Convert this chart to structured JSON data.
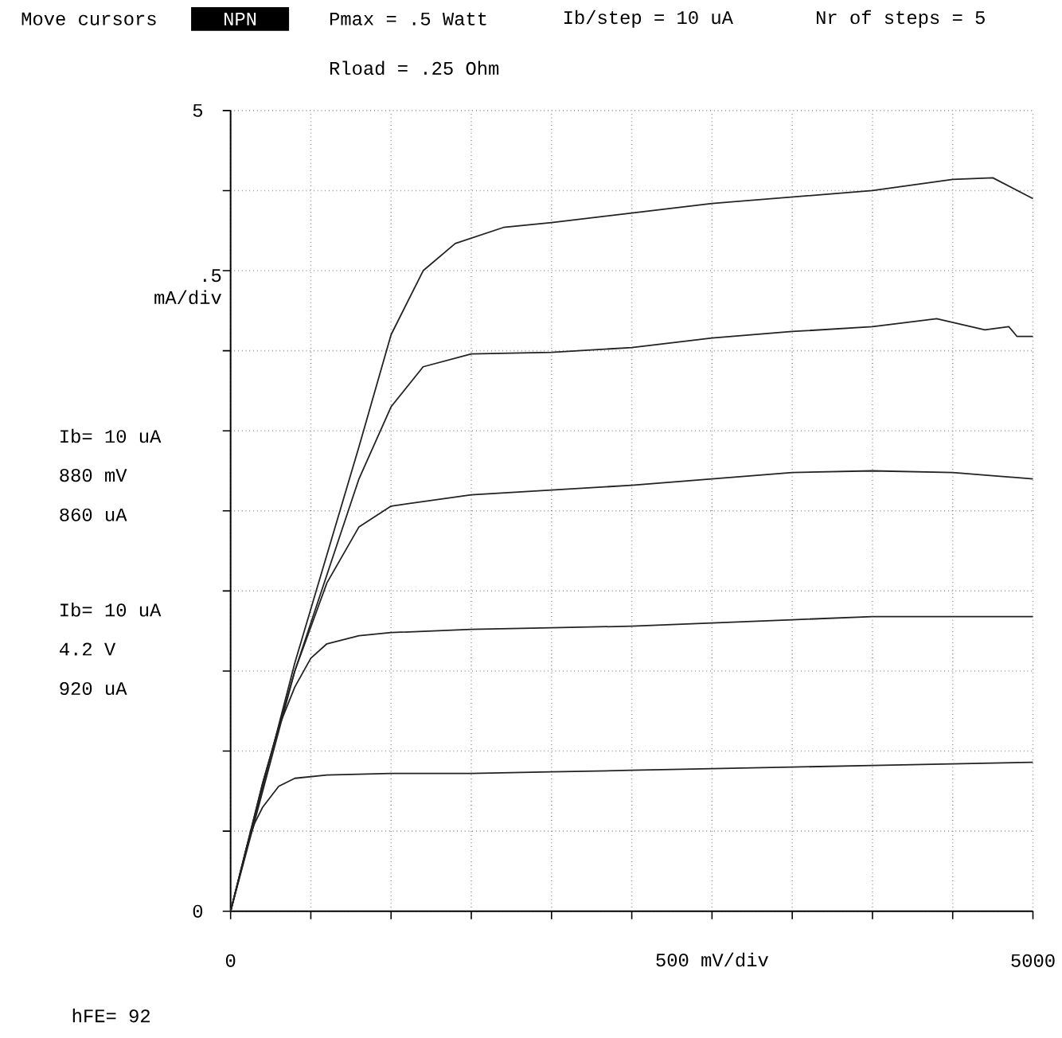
{
  "chart_data": {
    "type": "line",
    "xlabel": "500 mV/div",
    "ylabel": ".5 mA/div",
    "xlim": [
      0,
      5000
    ],
    "ylim": [
      0,
      5
    ],
    "xticks": [
      0,
      {
        "value": 500,
        "label": null
      },
      {
        "value": 1000,
        "label": null
      },
      {
        "value": 1500,
        "label": null
      },
      {
        "value": 2000,
        "label": null
      },
      {
        "value": 2500,
        "label": null
      },
      {
        "value": 3000,
        "label": null
      },
      {
        "value": 3500,
        "label": null
      },
      {
        "value": 4000,
        "label": null
      },
      {
        "value": 4500,
        "label": null
      },
      5000
    ],
    "yticks": [
      0,
      {
        "value": 0.5,
        "label": null
      },
      {
        "value": 1,
        "label": null
      },
      {
        "value": 1.5,
        "label": null
      },
      {
        "value": 2,
        "label": null
      },
      {
        "value": 2.5,
        "label": null
      },
      {
        "value": 3,
        "label": null
      },
      {
        "value": 3.5,
        "label": null
      },
      {
        "value": 4,
        "label": null
      },
      {
        "value": 4.5,
        "label": null
      },
      5
    ],
    "grid": true,
    "series": [
      {
        "color": "#222222",
        "x": [
          0,
          50,
          100,
          150,
          200,
          300,
          400,
          600,
          1000,
          1500,
          2000,
          2500,
          3000,
          3500,
          4000,
          4500,
          5000
        ],
        "values": [
          0,
          0.2,
          0.4,
          0.55,
          0.65,
          0.78,
          0.83,
          0.85,
          0.86,
          0.86,
          0.87,
          0.88,
          0.89,
          0.9,
          0.91,
          0.92,
          0.93
        ]
      },
      {
        "color": "#222222",
        "x": [
          0,
          100,
          200,
          300,
          400,
          500,
          600,
          800,
          1000,
          1500,
          2000,
          2500,
          3000,
          3500,
          4000,
          4500,
          5000
        ],
        "values": [
          0,
          0.4,
          0.8,
          1.15,
          1.4,
          1.58,
          1.67,
          1.72,
          1.74,
          1.76,
          1.77,
          1.78,
          1.8,
          1.82,
          1.84,
          1.84,
          1.84
        ]
      },
      {
        "color": "#222222",
        "x": [
          0,
          200,
          400,
          600,
          800,
          1000,
          1500,
          2000,
          2500,
          3000,
          3500,
          4000,
          4500,
          5000
        ],
        "values": [
          0,
          0.8,
          1.5,
          2.05,
          2.4,
          2.53,
          2.6,
          2.63,
          2.66,
          2.7,
          2.74,
          2.75,
          2.74,
          2.7
        ]
      },
      {
        "color": "#222222",
        "x": [
          0,
          400,
          800,
          1000,
          1200,
          1500,
          2000,
          2500,
          3000,
          3500,
          4000,
          4400,
          4700,
          4850,
          4900,
          5000
        ],
        "values": [
          0,
          1.5,
          2.7,
          3.15,
          3.4,
          3.48,
          3.49,
          3.52,
          3.58,
          3.62,
          3.65,
          3.7,
          3.63,
          3.65,
          3.59,
          3.59
        ]
      },
      {
        "color": "#222222",
        "x": [
          0,
          400,
          800,
          1000,
          1200,
          1400,
          1700,
          2000,
          2500,
          3000,
          3500,
          4000,
          4500,
          4750,
          5000
        ],
        "values": [
          0,
          1.55,
          2.9,
          3.6,
          4.0,
          4.17,
          4.27,
          4.3,
          4.36,
          4.42,
          4.46,
          4.5,
          4.57,
          4.58,
          4.45
        ]
      }
    ],
    "annotations": [
      "Move cursors",
      "NPN",
      "Pmax  = .5 Watt",
      "Ib/step = 10 uA",
      "Nr of steps = 5",
      "Rload = .25 Ohm",
      "Ib= 10 uA",
      "880 mV",
      "860 uA",
      "Ib= 10 uA",
      "4.2 V",
      "920 uA",
      "hFE= 92"
    ]
  }
}
